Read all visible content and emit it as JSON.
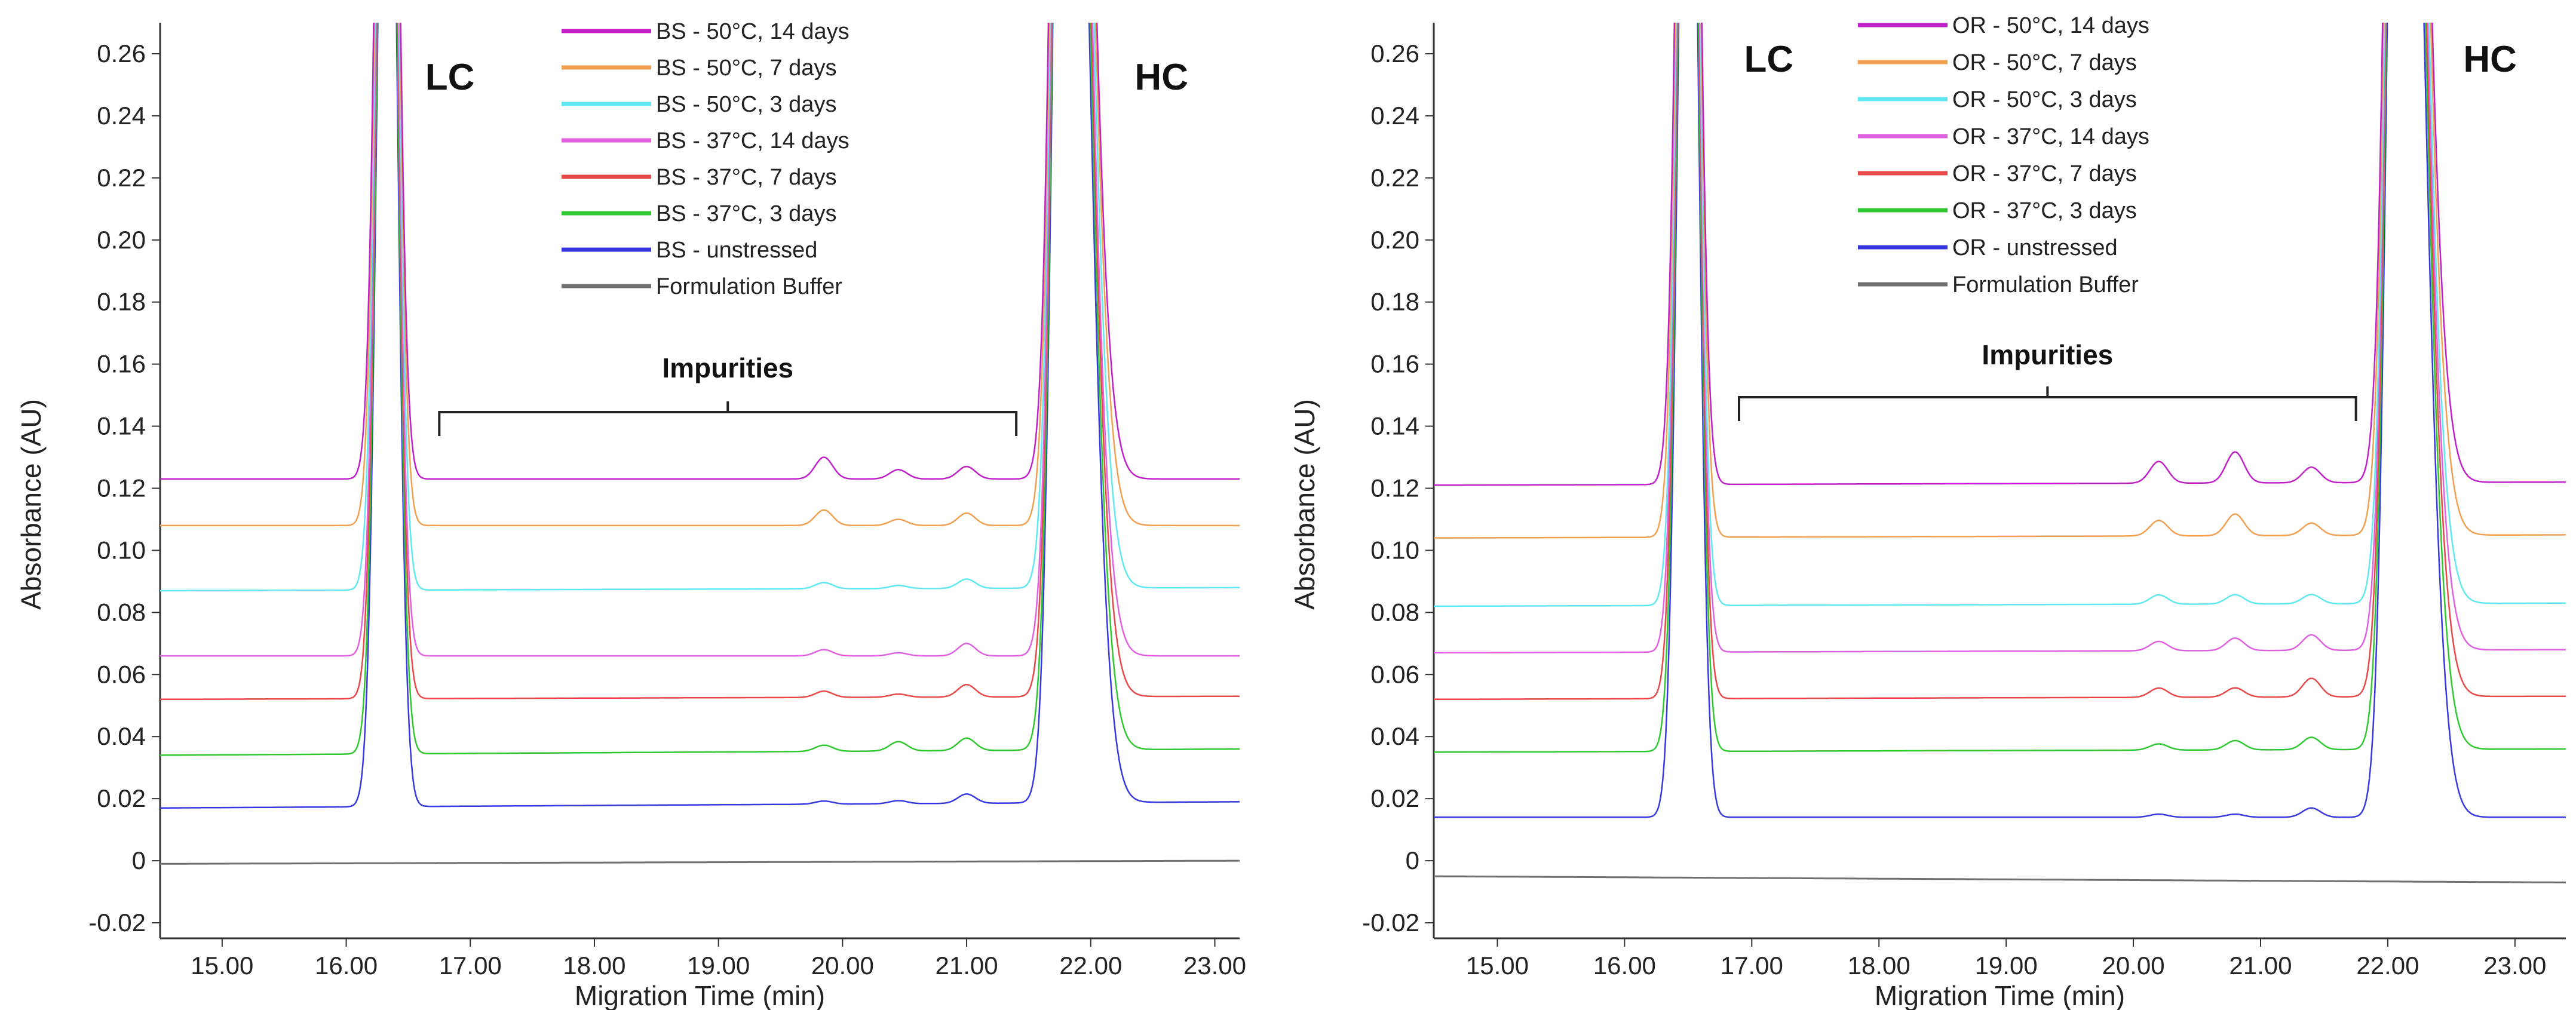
{
  "chart_data": [
    {
      "type": "line",
      "panel": "left",
      "xlabel": "Migration Time (min)",
      "ylabel": "Absorbance (AU)",
      "xlim": [
        14.5,
        23.2
      ],
      "ylim": [
        -0.025,
        0.27
      ],
      "x_ticks": [
        "15.00",
        "16.00",
        "17.00",
        "18.00",
        "19.00",
        "20.00",
        "21.00",
        "22.00",
        "23.00"
      ],
      "y_ticks": [
        "0.26",
        "0.24",
        "0.22",
        "0.20",
        "0.18",
        "0.16",
        "0.14",
        "0.12",
        "0.10",
        "0.08",
        "0.06",
        "0.04",
        "0.02",
        "0",
        "-0.02"
      ],
      "peak_labels": {
        "lc": "LC",
        "hc": "HC"
      },
      "annotation": {
        "text": "Impurities",
        "x_start": 16.75,
        "x_end": 21.4
      },
      "lc_peak": 16.33,
      "hc_peak": 21.8,
      "impurity_peaks": [
        19.85,
        20.45,
        21.0
      ],
      "series": [
        {
          "name": "BS - 50°C, 14 days",
          "color": "#c020c8",
          "baseline_start": 0.123,
          "baseline_end": 0.123,
          "impurity_heights": [
            0.007,
            0.003,
            0.004
          ]
        },
        {
          "name": "BS - 50°C, 7 days",
          "color": "#f0a050",
          "baseline_start": 0.108,
          "baseline_end": 0.108,
          "impurity_heights": [
            0.005,
            0.002,
            0.004
          ]
        },
        {
          "name": "BS - 50°C, 3 days",
          "color": "#60e8f0",
          "baseline_start": 0.087,
          "baseline_end": 0.088,
          "impurity_heights": [
            0.002,
            0.001,
            0.003
          ]
        },
        {
          "name": "BS - 37°C, 14 days",
          "color": "#e060e0",
          "baseline_start": 0.066,
          "baseline_end": 0.066,
          "impurity_heights": [
            0.002,
            0.001,
            0.004
          ]
        },
        {
          "name": "BS - 37°C, 7 days",
          "color": "#e84848",
          "baseline_start": 0.052,
          "baseline_end": 0.053,
          "impurity_heights": [
            0.002,
            0.001,
            0.004
          ]
        },
        {
          "name": "BS - 37°C, 3 days",
          "color": "#30c830",
          "baseline_start": 0.034,
          "baseline_end": 0.036,
          "impurity_heights": [
            0.002,
            0.003,
            0.004
          ]
        },
        {
          "name": "BS - unstressed",
          "color": "#3838e0",
          "baseline_start": 0.017,
          "baseline_end": 0.019,
          "impurity_heights": [
            0.001,
            0.001,
            0.003
          ]
        },
        {
          "name": "Formulation Buffer",
          "color": "#707070",
          "baseline_start": -0.001,
          "baseline_end": 0.0,
          "impurity_heights": [
            0,
            0,
            0
          ]
        }
      ]
    },
    {
      "type": "line",
      "panel": "right",
      "xlabel": "Migration Time (min)",
      "ylabel": "Absorbance (AU)",
      "xlim": [
        14.5,
        23.4
      ],
      "ylim": [
        -0.025,
        0.27
      ],
      "x_ticks": [
        "15.00",
        "16.00",
        "17.00",
        "18.00",
        "19.00",
        "20.00",
        "21.00",
        "22.00",
        "23.00"
      ],
      "y_ticks": [
        "0.26",
        "0.24",
        "0.22",
        "0.20",
        "0.18",
        "0.16",
        "0.14",
        "0.12",
        "0.10",
        "0.08",
        "0.06",
        "0.04",
        "0.02",
        "0",
        "-0.02"
      ],
      "peak_labels": {
        "lc": "LC",
        "hc": "HC"
      },
      "annotation": {
        "text": "Impurities",
        "x_start": 16.9,
        "x_end": 21.75
      },
      "lc_peak": 16.5,
      "hc_peak": 22.1,
      "impurity_peaks": [
        20.2,
        20.8,
        21.4
      ],
      "series": [
        {
          "name": "OR - 50°C, 14 days",
          "color": "#c020c8",
          "baseline_start": 0.121,
          "baseline_end": 0.122,
          "impurity_heights": [
            0.007,
            0.01,
            0.005
          ]
        },
        {
          "name": "OR - 50°C, 7 days",
          "color": "#f0a050",
          "baseline_start": 0.104,
          "baseline_end": 0.105,
          "impurity_heights": [
            0.005,
            0.007,
            0.004
          ]
        },
        {
          "name": "OR - 50°C, 3 days",
          "color": "#60e8f0",
          "baseline_start": 0.082,
          "baseline_end": 0.083,
          "impurity_heights": [
            0.003,
            0.003,
            0.003
          ]
        },
        {
          "name": "OR - 37°C, 14 days",
          "color": "#e060e0",
          "baseline_start": 0.067,
          "baseline_end": 0.068,
          "impurity_heights": [
            0.003,
            0.004,
            0.005
          ]
        },
        {
          "name": "OR - 37°C, 7 days",
          "color": "#e84848",
          "baseline_start": 0.052,
          "baseline_end": 0.053,
          "impurity_heights": [
            0.003,
            0.003,
            0.006
          ]
        },
        {
          "name": "OR - 37°C, 3 days",
          "color": "#30c830",
          "baseline_start": 0.035,
          "baseline_end": 0.036,
          "impurity_heights": [
            0.002,
            0.003,
            0.004
          ]
        },
        {
          "name": "OR - unstressed",
          "color": "#3838e0",
          "baseline_start": 0.014,
          "baseline_end": 0.014,
          "impurity_heights": [
            0.001,
            0.001,
            0.003
          ]
        },
        {
          "name": "Formulation Buffer",
          "color": "#707070",
          "baseline_start": -0.005,
          "baseline_end": -0.007,
          "impurity_heights": [
            0,
            0,
            0
          ]
        }
      ]
    }
  ]
}
